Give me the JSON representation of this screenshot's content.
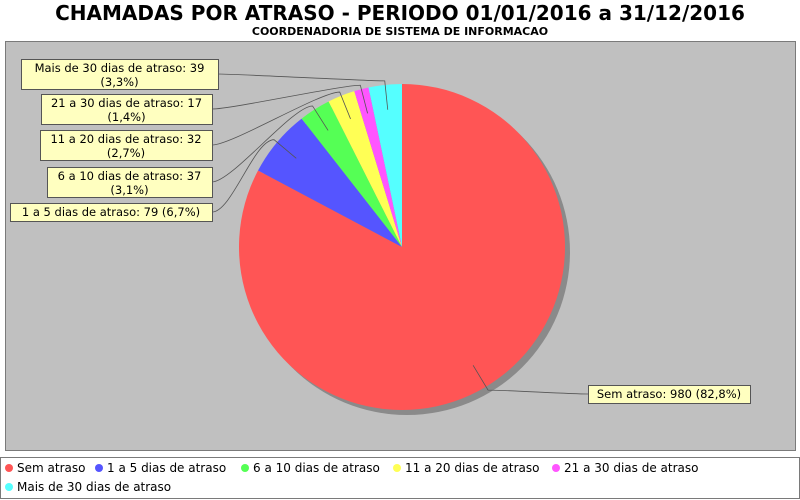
{
  "chart_data": {
    "type": "pie",
    "title": "CHAMADAS POR ATRASO - PERIODO 01/01/2016 a 31/12/2016",
    "subtitle": "COORDENADORIA DE SISTEMA DE INFORMACAO",
    "legend_position": "bottom",
    "slices": [
      {
        "label": "Sem atraso",
        "value": 980,
        "percent_label": "82,8%",
        "tooltip": "Sem atraso: 980 (82,8%)",
        "color": "#ff5555"
      },
      {
        "label": "1 a 5 dias de atraso",
        "value": 79,
        "percent_label": "6,7%",
        "tooltip": "1 a 5 dias de atraso: 79 (6,7%)",
        "color": "#5555ff"
      },
      {
        "label": "6 a 10 dias de atraso",
        "value": 37,
        "percent_label": "3,1%",
        "tooltip_line1": "6 a 10 dias de atraso: 37",
        "tooltip_line2": "(3,1%)",
        "color": "#55ff55"
      },
      {
        "label": "11 a 20 dias de atraso",
        "value": 32,
        "percent_label": "2,7%",
        "tooltip_line1": "11 a 20 dias de atraso: 32",
        "tooltip_line2": "(2,7%)",
        "color": "#ffff55"
      },
      {
        "label": "21 a 30 dias de atraso",
        "value": 17,
        "percent_label": "1,4%",
        "tooltip_line1": "21 a 30 dias de atraso: 17",
        "tooltip_line2": "(1,4%)",
        "color": "#ff55ff"
      },
      {
        "label": "Mais de 30 dias de atraso",
        "value": 39,
        "percent_label": "3,3%",
        "tooltip_line1": "Mais de 30 dias de atraso: 39",
        "tooltip_line2": "(3,3%)",
        "color": "#55ffff"
      }
    ]
  }
}
